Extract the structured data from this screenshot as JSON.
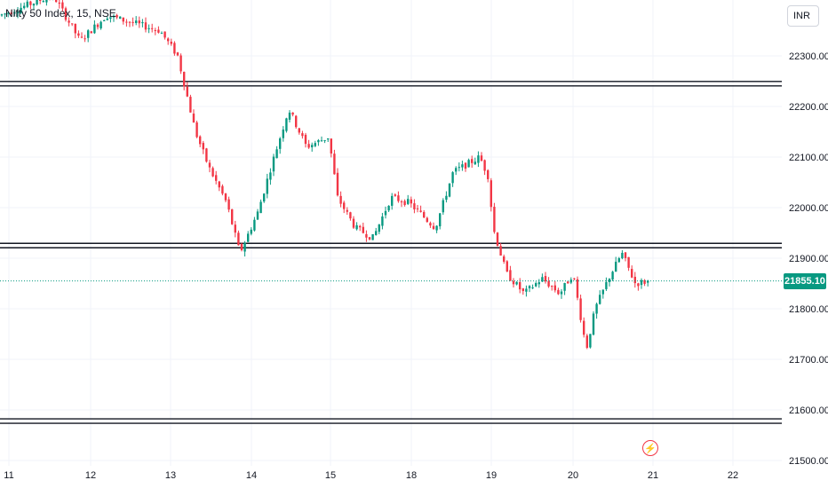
{
  "symbol_title": "Nifty 50 Index, 15, NSE",
  "currency": "INR",
  "last_price_label": "21855.10",
  "event_icon": "lightning-icon",
  "colors": {
    "up": "#089981",
    "down": "#f23645",
    "grid": "#f0f3fa",
    "level_line": "#131722",
    "price_line": "#089981",
    "axis_text": "#131722"
  },
  "chart_data": {
    "type": "candlestick",
    "instrument": "Nifty 50 Index",
    "interval": "15",
    "exchange": "NSE",
    "x_tick_labels": [
      "11",
      "12",
      "13",
      "14",
      "15",
      "18",
      "19",
      "20",
      "21",
      "22"
    ],
    "y_tick_labels": [
      "22300.00",
      "22200.00",
      "22100.00",
      "22000.00",
      "21900.00",
      "21800.00",
      "21700.00",
      "21600.00",
      "21500.00"
    ],
    "ylim": [
      21500,
      22400
    ],
    "grid": true,
    "last_price": 21855.1,
    "horizontal_levels": [
      {
        "price": 22245,
        "style": "double"
      },
      {
        "price": 21925,
        "style": "double"
      },
      {
        "price": 21578,
        "style": "double"
      }
    ],
    "approx_path": {
      "description": "price per session tick (approximate closes)",
      "x": [
        "11",
        "12",
        "13",
        "14",
        "15",
        "18",
        "19",
        "20",
        "21"
      ],
      "y": [
        22380,
        22390,
        22290,
        21960,
        22140,
        21960,
        22070,
        21830,
        21855
      ]
    }
  }
}
